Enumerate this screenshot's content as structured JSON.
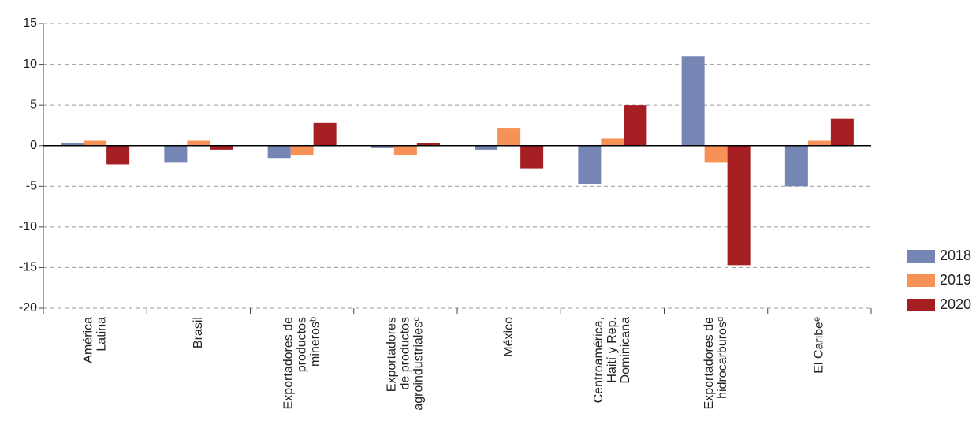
{
  "chart_data": {
    "type": "bar",
    "categories": [
      [
        "América",
        "Latina"
      ],
      [
        "Brasil"
      ],
      [
        "Exportadores de",
        "productos",
        "minerosᵇ"
      ],
      [
        "Exportadores",
        "de productos",
        "agroindustrialesᶜ"
      ],
      [
        "México"
      ],
      [
        "Centroamérica,",
        "Haití y Rep.",
        "Dominicana"
      ],
      [
        "Exportadores de",
        "hidrocarburosᵈ"
      ],
      [
        "El Caribeᵉ"
      ]
    ],
    "series": [
      {
        "name": "2018",
        "color": "#7585b4",
        "values": [
          0.3,
          -2.1,
          -1.6,
          -0.3,
          -0.5,
          -4.7,
          11.0,
          -5.0
        ]
      },
      {
        "name": "2019",
        "color": "#f79256",
        "values": [
          0.6,
          0.6,
          -1.2,
          -1.2,
          2.1,
          0.9,
          -2.1,
          0.6
        ]
      },
      {
        "name": "2020",
        "color": "#a51e22",
        "values": [
          -2.3,
          -0.5,
          2.8,
          0.3,
          -2.8,
          5.0,
          -14.7,
          3.3
        ]
      }
    ],
    "ylim": [
      -20,
      15
    ],
    "yticks": [
      -20,
      -15,
      -10,
      -5,
      0,
      5,
      10,
      15
    ],
    "grid": true,
    "legend": "right"
  }
}
